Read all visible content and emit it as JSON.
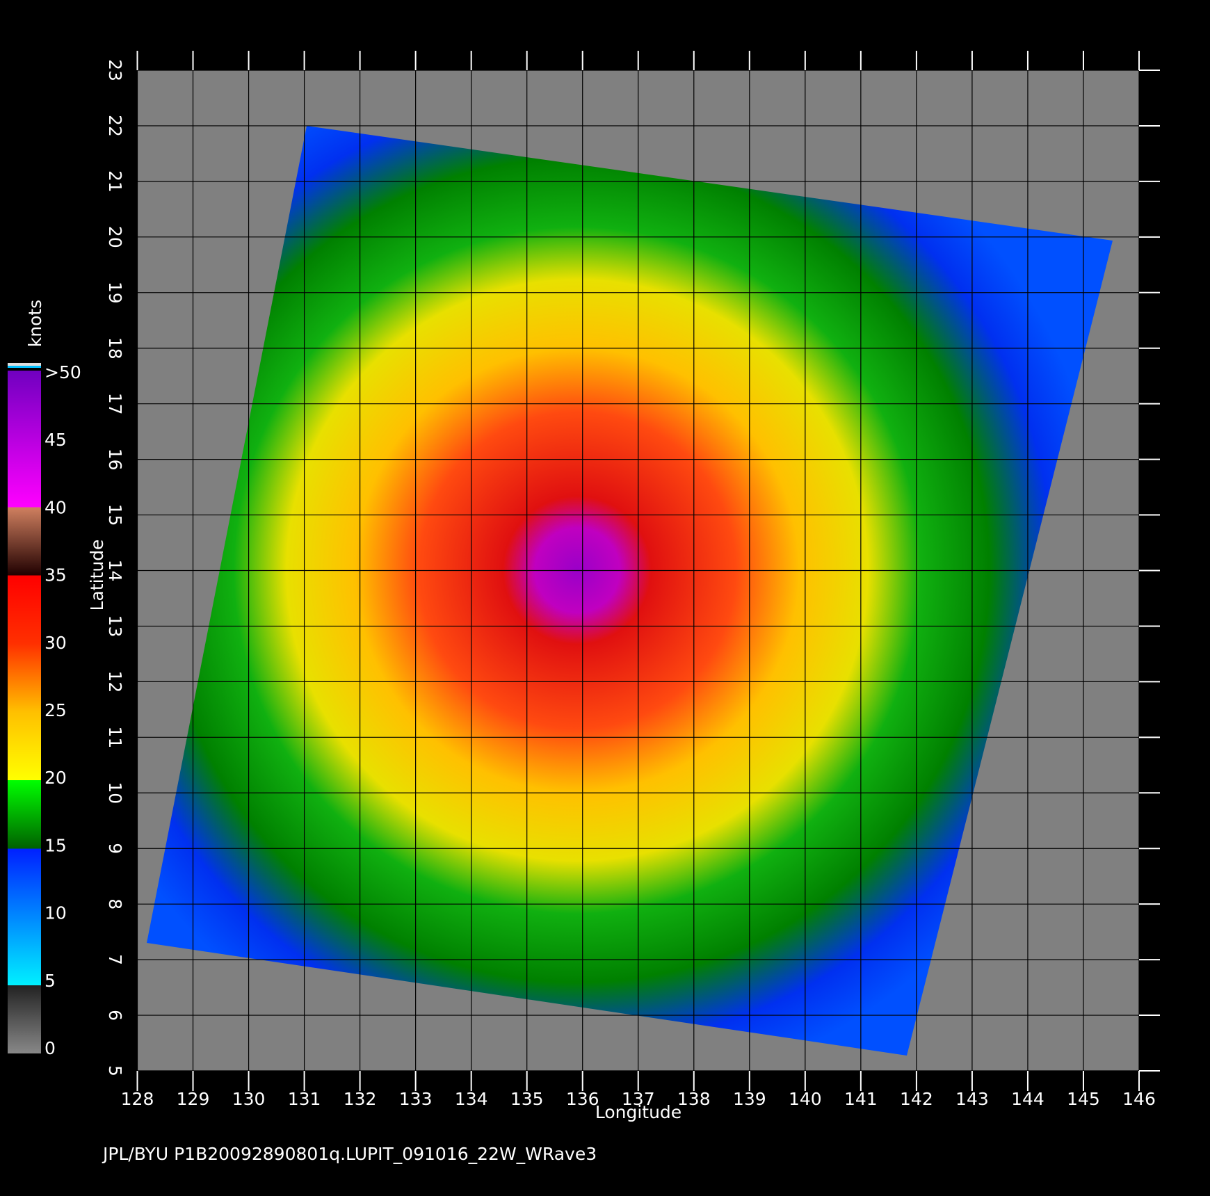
{
  "chart_data": {
    "type": "map",
    "xlabel": "Longitude",
    "ylabel": "Latitude",
    "xlim": [
      128,
      146
    ],
    "ylim": [
      5,
      23
    ],
    "xticks": [
      128,
      129,
      130,
      131,
      132,
      133,
      134,
      135,
      136,
      137,
      138,
      139,
      140,
      141,
      142,
      143,
      144,
      145,
      146
    ],
    "yticks": [
      5,
      6,
      7,
      8,
      9,
      10,
      11,
      12,
      13,
      14,
      15,
      16,
      17,
      18,
      19,
      20,
      21,
      22,
      23
    ],
    "grid": true,
    "colorbar": {
      "label": "knots",
      "lim": [
        0,
        50
      ],
      "ticks": [
        0,
        5,
        10,
        15,
        20,
        25,
        30,
        35,
        40,
        45,
        {
          "value": 50,
          "label": ">50"
        }
      ]
    },
    "footer": "JPL/BYU  P1B20092890801q.LUPIT_091016_22W_WRave3"
  }
}
